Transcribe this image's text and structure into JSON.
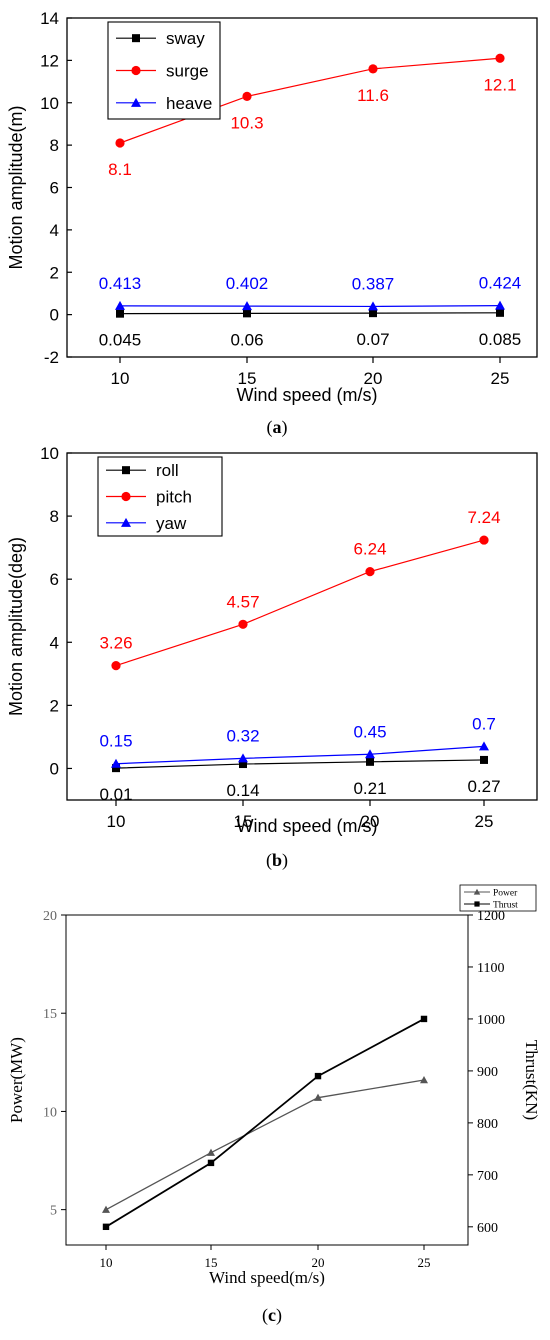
{
  "colors": {
    "black": "#000000",
    "red": "#ff0000",
    "blue": "#0000ff",
    "gray": "#555555",
    "axis": "#000000"
  },
  "captions": [
    "(a)",
    "(b)",
    "(c)"
  ],
  "chart_data": [
    {
      "type": "line",
      "caption": "(a)",
      "xlabel": "Wind speed (m/s)",
      "ylabel": "Motion amplitude(m)",
      "x": [
        10,
        15,
        20,
        25
      ],
      "xticks": [
        "10",
        "15",
        "20",
        "25"
      ],
      "xlim": [
        7,
        27
      ],
      "yticks": [
        "-2",
        "0",
        "2",
        "4",
        "6",
        "8",
        "10",
        "12",
        "14"
      ],
      "ylim": [
        -2,
        14
      ],
      "legend_position": "top-left",
      "series": [
        {
          "name": "sway",
          "color": "#000000",
          "marker": "square",
          "values": [
            0.045,
            0.06,
            0.07,
            0.085
          ],
          "labels": [
            "0.045",
            "0.06",
            "0.07",
            "0.085"
          ],
          "label_side": "below"
        },
        {
          "name": "surge",
          "color": "#ff0000",
          "marker": "circle",
          "values": [
            8.1,
            10.3,
            11.6,
            12.1
          ],
          "labels": [
            "8.1",
            "10.3",
            "11.6",
            "12.1"
          ],
          "label_side": "below"
        },
        {
          "name": "heave",
          "color": "#0000ff",
          "marker": "triangle",
          "values": [
            0.413,
            0.402,
            0.387,
            0.424
          ],
          "labels": [
            "0.413",
            "0.402",
            "0.387",
            "0.424"
          ],
          "label_side": "above"
        }
      ]
    },
    {
      "type": "line",
      "caption": "(b)",
      "xlabel": "Wind speed (m/s)",
      "ylabel": "Motion amplitude(deg)",
      "x": [
        10,
        15,
        20,
        25
      ],
      "xticks": [
        "10",
        "15",
        "20",
        "25"
      ],
      "xlim": [
        7.5,
        27
      ],
      "yticks": [
        "0",
        "2",
        "4",
        "6",
        "8",
        "10"
      ],
      "ylim": [
        -1,
        10
      ],
      "legend_position": "top-left",
      "series": [
        {
          "name": "roll",
          "color": "#000000",
          "marker": "square",
          "values": [
            0.01,
            0.14,
            0.21,
            0.27
          ],
          "labels": [
            "0.01",
            "0.14",
            "0.21",
            "0.27"
          ],
          "label_side": "below"
        },
        {
          "name": "pitch",
          "color": "#ff0000",
          "marker": "circle",
          "values": [
            3.26,
            4.57,
            6.24,
            7.24
          ],
          "labels": [
            "3.26",
            "4.57",
            "6.24",
            "7.24"
          ],
          "label_side": "above"
        },
        {
          "name": "yaw",
          "color": "#0000ff",
          "marker": "triangle",
          "values": [
            0.15,
            0.32,
            0.45,
            0.7
          ],
          "labels": [
            "0.15",
            "0.32",
            "0.45",
            "0.7"
          ],
          "label_side": "above"
        }
      ]
    },
    {
      "type": "line",
      "caption": "(c)",
      "xlabel": "Wind speed(m/s)",
      "ylabel": "Power(MW)",
      "ylabel_right": "Thrust(KN)",
      "x": [
        10,
        15,
        20,
        25
      ],
      "xticks": [
        "10",
        "15",
        "20",
        "25"
      ],
      "xlim": [
        8,
        27
      ],
      "yticks": [
        "5",
        "10",
        "15",
        "20"
      ],
      "ylim": [
        3.2,
        20
      ],
      "yticks_right": [
        "600",
        "700",
        "800",
        "900",
        "1000",
        "1100",
        "1200"
      ],
      "ylim_right": [
        565,
        1200
      ],
      "legend_position": "above-right",
      "series": [
        {
          "name": "Power",
          "color": "#555555",
          "marker": "triangle",
          "axis": "left",
          "values": [
            5.0,
            7.9,
            10.7,
            11.6
          ]
        },
        {
          "name": "Thrust",
          "color": "#000000",
          "marker": "square",
          "axis": "right",
          "values": [
            600,
            723,
            890,
            1000
          ]
        }
      ]
    }
  ]
}
